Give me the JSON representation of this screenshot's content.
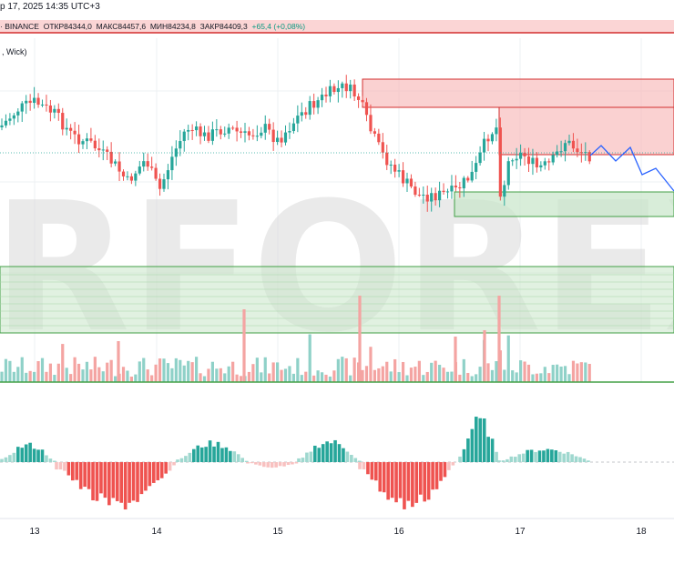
{
  "header": {
    "date_time": "p 17, 2025 14:35 UTC+3"
  },
  "symbol_bar": {
    "exchange": "· BINANCE",
    "open": "ОТКР84344,0",
    "high": "МАКС84457,6",
    "low": "МИН84234,8",
    "close": "ЗАКР84409,3",
    "change": "+65,4 (+0,08%)"
  },
  "indicator_label": ", Wick)",
  "watermark": "RFOREX.c",
  "colors": {
    "up": "#26a69a",
    "down": "#ef5350",
    "vol_up": "#8fd1c8",
    "vol_down": "#f4a4a2",
    "resistance_fill": "#f7b8b8",
    "resistance_line": "#d32f2f",
    "support_fill": "#c8e6c9",
    "support_line": "#43a047",
    "forecast": "#2962ff",
    "grid": "#eef0f3"
  },
  "chart_data": {
    "type": "candlestick",
    "x_ticks": [
      "13",
      "14",
      "15",
      "16",
      "17",
      "18"
    ],
    "zones": {
      "resistance": [
        "upper resistance band",
        "lower resistance band"
      ],
      "support": [
        "upper support band",
        "wide lower support band"
      ]
    },
    "forecast": "blue projected path to the right of last candle",
    "panels": [
      "price",
      "volume",
      "histogram oscillator"
    ]
  }
}
